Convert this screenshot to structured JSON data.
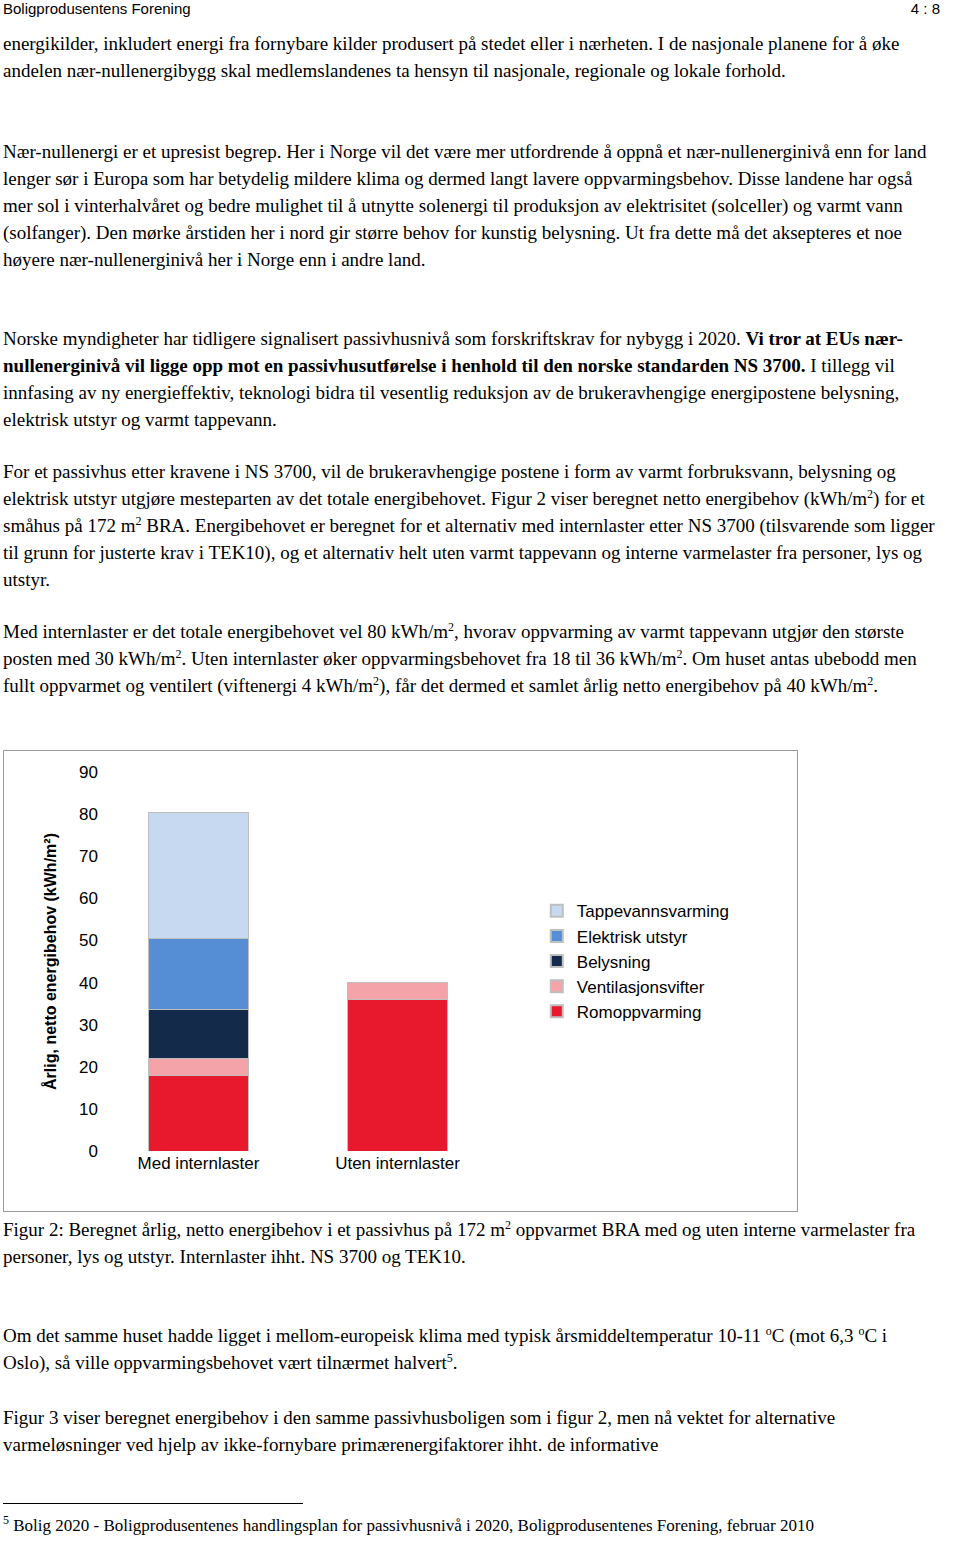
{
  "header": {
    "left": "Boligprodusentens Forening",
    "right": "4 : 8"
  },
  "paragraphs_before": [
    [
      "energikilder, inkludert energi fra fornybare kilder produsert på stedet eller i nærheten. I de nasjonale planene for å øke andelen nær-nullenergibygg skal medlemslandenes ta hensyn til nasjonale, regionale og lokale forhold."
    ],
    [
      "Nær-nullenergi er et upresist begrep. Her i Norge vil det være mer utfordrende å oppnå et nær-nullenerginivå enn for land lenger sør i Europa som har betydelig mildere klima og dermed langt lavere oppvarmingsbehov. Disse landene har også mer sol i vinterhalvåret og bedre mulighet til å utnytte solenergi til produksjon av elektrisitet (solceller) og varmt vann (solfanger). Den mørke årstiden her i nord gir større behov for kunstig belysning. Ut fra dette må det aksepteres et noe høyere nær-nullenerginivå her i Norge enn i andre land."
    ],
    [
      "Norske myndigheter har tidligere signalisert passivhusnivå som forskriftskrav for nybygg i 2020. ",
      {
        "text": "Vi tror at EUs nær-nullenerginivå vil ligge opp mot en passivhusutførelse i henhold til den norske standarden NS 3700.",
        "style": "bold"
      },
      " I tillegg vil innfasing av ny energieffektiv, teknologi bidra til vesentlig reduksjon av de brukeravhengige energipostene belysning, elektrisk utstyr og varmt tappevann."
    ],
    [
      "For et passivhus etter kravene i NS 3700, vil de brukeravhengige postene i form av varmt forbruksvann, belysning og elektrisk utstyr utgjøre mesteparten av det totale energibehovet. Figur 2 viser beregnet netto energibehov (kWh/m",
      {
        "text": "2",
        "style": "sup"
      },
      ") for et småhus på 172 m",
      {
        "text": "2",
        "style": "sup"
      },
      " BRA. Energibehovet er beregnet for et alternativ med internlaster etter NS 3700 (tilsvarende som ligger til grunn for justerte krav i TEK10), og et alternativ helt uten varmt tappevann og interne varmelaster fra personer, lys og utstyr."
    ],
    [
      "Med internlaster er det totale energibehovet vel 80 kWh/m",
      {
        "text": "2",
        "style": "sup"
      },
      ", hvorav oppvarming av varmt tappevann utgjør den største posten med 30 kWh/m",
      {
        "text": "2",
        "style": "sup"
      },
      ". Uten internlaster øker oppvarmingsbehovet fra 18 til 36 kWh/m",
      {
        "text": "2",
        "style": "sup"
      },
      ". Om huset antas ubebodd men fullt oppvarmet og ventilert (viftenergi 4 kWh/m",
      {
        "text": "2",
        "style": "sup"
      },
      "), får det dermed et samlet årlig netto energibehov på 40 kWh/m",
      {
        "text": "2",
        "style": "sup"
      },
      "."
    ]
  ],
  "chart_data": {
    "type": "bar",
    "stacked": true,
    "y_label": "Årlig, netto energibehov (kWh/m²)",
    "categories": [
      "Med internlaster",
      "Uten internlaster"
    ],
    "series": [
      {
        "name": "Romoppvarming",
        "color": "#e8192c",
        "values": [
          18,
          36
        ]
      },
      {
        "name": "Ventilasjonsvifter",
        "color": "#f4a3a8",
        "values": [
          4,
          4
        ]
      },
      {
        "name": "Belysning",
        "color": "#132a4a",
        "values": [
          11.5,
          0
        ]
      },
      {
        "name": "Elektrisk utstyr",
        "color": "#558ed5",
        "values": [
          17,
          0
        ]
      },
      {
        "name": "Tappevannsvarming",
        "color": "#c6d9f1",
        "values": [
          30,
          0
        ]
      }
    ],
    "ylim": [
      0,
      90
    ],
    "yticks": [
      0,
      10,
      20,
      30,
      40,
      50,
      60,
      70,
      80,
      90
    ],
    "grid": false,
    "legend": "right"
  },
  "caption": [
    "Figur 2: Beregnet årlig, netto energibehov i et passivhus på 172 m",
    {
      "text": "2",
      "style": "sup"
    },
    " oppvarmet BRA med og uten interne varmelaster fra personer, lys og utstyr. Internlaster ihht. NS 3700 og TEK10."
  ],
  "paragraphs_after": [
    [
      "Om det samme huset hadde ligget i mellom-europeisk klima med typisk årsmiddeltemperatur 10-11 ",
      {
        "text": "o",
        "style": "sup"
      },
      "C (mot 6,3 ",
      {
        "text": "o",
        "style": "sup"
      },
      "C i Oslo), så ville oppvarmingsbehovet vært tilnærmet halvert",
      {
        "text": "5",
        "style": "sup"
      },
      "."
    ],
    [
      "Figur 3 viser beregnet energibehov i den samme passivhusboligen som i figur 2, men nå vektet for alternative varmeløsninger ved hjelp av ikke-fornybare primærenergifaktorer ihht. de informative"
    ]
  ],
  "footnote": [
    {
      "text": "5",
      "style": "sup"
    },
    " Bolig 2020 - Boligprodusentenes handlingsplan for passivhusnivå i 2020, Boligprodusentenes Forening, februar 2010"
  ]
}
